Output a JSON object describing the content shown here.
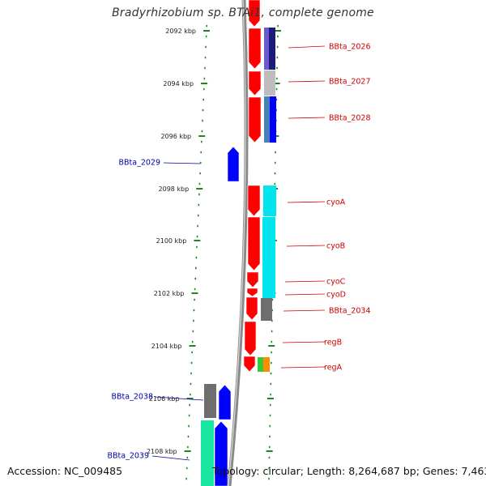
{
  "title": "Bradyrhizobium sp. BTAi1, complete genome",
  "accession_text": "Accession: NC_009485",
  "summary_text": "Topology: circular; Length: 8,264,687 bp; Genes: 7,463",
  "colors": {
    "backbone": "#8a8a8a",
    "tick_inner": "#1a8a1a",
    "tick_outer": "#1a8a1a",
    "right_label": "#cc0000",
    "left_label": "#0000aa",
    "red": "#ff0000",
    "blue": "#0000ff",
    "cyan": "#00e5ee",
    "gray": "#6e6e6e",
    "light_gray": "#bdbdbd"
  },
  "scale": {
    "unit": "kbp",
    "ticks": [
      "2092 kbp",
      "2094 kbp",
      "2096 kbp",
      "2098 kbp",
      "2100 kbp",
      "2102 kbp",
      "2104 kbp",
      "2106 kbp",
      "2108 kbp"
    ]
  },
  "gene_labels_right": [
    "BBta_2026",
    "BBta_2027",
    "BBta_2028",
    "cyoA",
    "cyoB",
    "cyoC",
    "cyoD",
    "BBta_2034",
    "regB",
    "regA"
  ],
  "gene_labels_left": [
    "BBta_2029",
    "BBta_2038",
    "BBta_2039"
  ]
}
